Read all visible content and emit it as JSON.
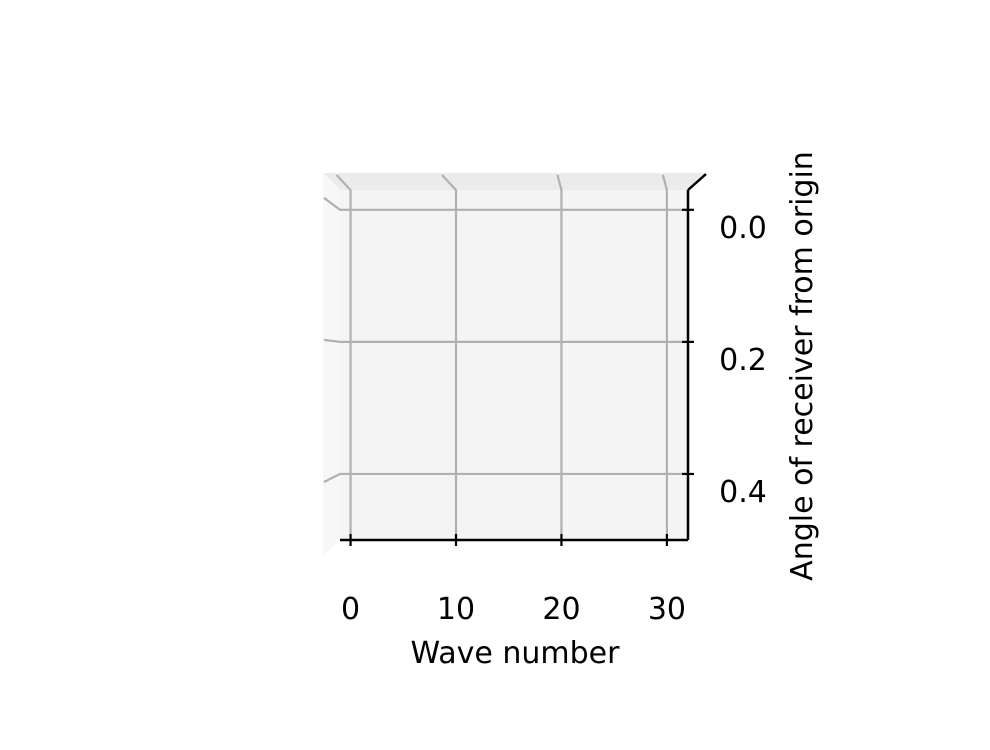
{
  "chart_data": {
    "type": "surface-3d",
    "title": "",
    "xlabel": "Wave number",
    "ylabel": "Angle of receiver from origin",
    "x_ticks": [
      0,
      10,
      20,
      30
    ],
    "x_tick_labels": [
      "0",
      "10",
      "20",
      "30"
    ],
    "y_ticks": [
      0.0,
      0.2,
      0.4
    ],
    "y_tick_labels": [
      "0.0",
      "0.2",
      "0.4"
    ],
    "xlim": [
      -1,
      32
    ],
    "ylim": [
      0.5,
      -0.03
    ],
    "grid": true,
    "view": "top-down",
    "colors": {
      "pane": "#f2f2f2",
      "pane_edge": "#ebebeb",
      "grid": "#b0b0b0",
      "axis": "#000000"
    }
  }
}
